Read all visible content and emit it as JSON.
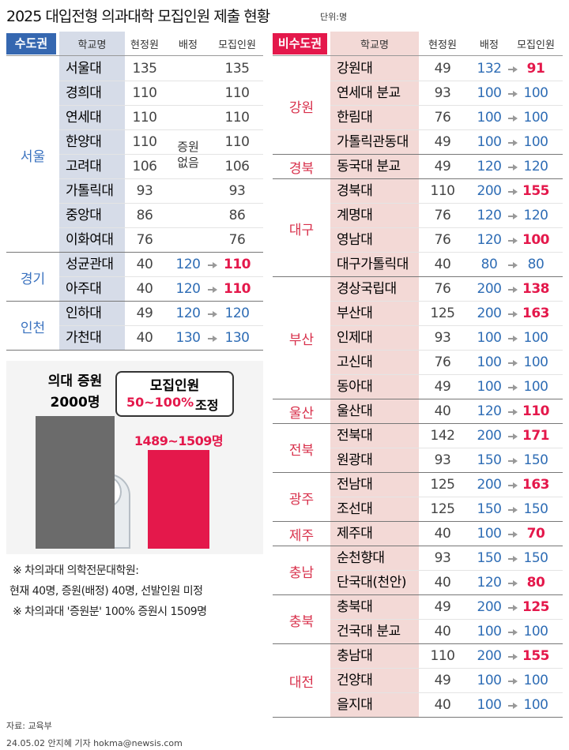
{
  "header": {
    "title": "2025 대입전형 의과대학 모집인원 제출 현황",
    "unit": "단위:명"
  },
  "capital": {
    "label": "수도권",
    "columns": [
      "학교명",
      "현정원",
      "배정",
      "모집인원"
    ],
    "no_increase": "증원 없음",
    "groups": [
      {
        "region": "서울",
        "rows": [
          {
            "school": "서울대",
            "current": 135,
            "recruit": 135
          },
          {
            "school": "경희대",
            "current": 110,
            "recruit": 110
          },
          {
            "school": "연세대",
            "current": 110,
            "recruit": 110
          },
          {
            "school": "한양대",
            "current": 110,
            "recruit": 110
          },
          {
            "school": "고려대",
            "current": 106,
            "recruit": 106
          },
          {
            "school": "가톨릭대",
            "current": 93,
            "recruit": 93
          },
          {
            "school": "중앙대",
            "current": 86,
            "recruit": 86
          },
          {
            "school": "이화여대",
            "current": 76,
            "recruit": 76
          }
        ]
      },
      {
        "region": "경기",
        "rows": [
          {
            "school": "성균관대",
            "current": 40,
            "assigned": 120,
            "recruit": 110
          },
          {
            "school": "아주대",
            "current": 40,
            "assigned": 120,
            "recruit": 110
          }
        ]
      },
      {
        "region": "인천",
        "rows": [
          {
            "school": "인하대",
            "current": 49,
            "assigned": 120,
            "recruit": 120
          },
          {
            "school": "가천대",
            "current": 40,
            "assigned": 130,
            "recruit": 130
          }
        ]
      }
    ]
  },
  "non_capital": {
    "label": "비수도권",
    "columns": [
      "학교명",
      "현정원",
      "배정",
      "모집인원"
    ],
    "groups": [
      {
        "region": "강원",
        "rows": [
          {
            "school": "강원대",
            "current": 49,
            "assigned": 132,
            "recruit": 91
          },
          {
            "school": "연세대 분교",
            "current": 93,
            "assigned": 100,
            "recruit": 100
          },
          {
            "school": "한림대",
            "current": 76,
            "assigned": 100,
            "recruit": 100
          },
          {
            "school": "가톨릭관동대",
            "current": 49,
            "assigned": 100,
            "recruit": 100
          }
        ]
      },
      {
        "region": "경북",
        "rows": [
          {
            "school": "동국대 분교",
            "current": 49,
            "assigned": 120,
            "recruit": 120
          }
        ]
      },
      {
        "region": "대구",
        "rows": [
          {
            "school": "경북대",
            "current": 110,
            "assigned": 200,
            "recruit": 155
          },
          {
            "school": "계명대",
            "current": 76,
            "assigned": 120,
            "recruit": 120
          },
          {
            "school": "영남대",
            "current": 76,
            "assigned": 120,
            "recruit": 100
          },
          {
            "school": "대구가톨릭대",
            "current": 40,
            "assigned": 80,
            "recruit": 80
          }
        ]
      },
      {
        "region": "부산",
        "rows": [
          {
            "school": "경상국립대",
            "current": 76,
            "assigned": 200,
            "recruit": 138
          },
          {
            "school": "부산대",
            "current": 125,
            "assigned": 200,
            "recruit": 163
          },
          {
            "school": "인제대",
            "current": 93,
            "assigned": 100,
            "recruit": 100
          },
          {
            "school": "고신대",
            "current": 76,
            "assigned": 100,
            "recruit": 100
          },
          {
            "school": "동아대",
            "current": 49,
            "assigned": 100,
            "recruit": 100
          }
        ]
      },
      {
        "region": "울산",
        "rows": [
          {
            "school": "울산대",
            "current": 40,
            "assigned": 120,
            "recruit": 110
          }
        ]
      },
      {
        "region": "전북",
        "rows": [
          {
            "school": "전북대",
            "current": 142,
            "assigned": 200,
            "recruit": 171
          },
          {
            "school": "원광대",
            "current": 93,
            "assigned": 150,
            "recruit": 150
          }
        ]
      },
      {
        "region": "광주",
        "rows": [
          {
            "school": "전남대",
            "current": 125,
            "assigned": 200,
            "recruit": 163
          },
          {
            "school": "조선대",
            "current": 125,
            "assigned": 150,
            "recruit": 150
          }
        ]
      },
      {
        "region": "제주",
        "rows": [
          {
            "school": "제주대",
            "current": 40,
            "assigned": 100,
            "recruit": 70
          }
        ]
      },
      {
        "region": "충남",
        "rows": [
          {
            "school": "순천향대",
            "current": 93,
            "assigned": 150,
            "recruit": 150
          },
          {
            "school": "단국대(천안)",
            "current": 40,
            "assigned": 120,
            "recruit": 80
          }
        ]
      },
      {
        "region": "충북",
        "rows": [
          {
            "school": "충북대",
            "current": 49,
            "assigned": 200,
            "recruit": 125
          },
          {
            "school": "건국대 분교",
            "current": 40,
            "assigned": 100,
            "recruit": 100
          }
        ]
      },
      {
        "region": "대전",
        "rows": [
          {
            "school": "충남대",
            "current": 110,
            "assigned": 200,
            "recruit": 155
          },
          {
            "school": "건양대",
            "current": 49,
            "assigned": 100,
            "recruit": 100
          },
          {
            "school": "을지대",
            "current": 40,
            "assigned": 100,
            "recruit": 100
          }
        ]
      }
    ]
  },
  "chart_data": {
    "type": "bar",
    "categories": [
      "의대 증원",
      "모집인원"
    ],
    "values": [
      2000,
      1489
    ],
    "value_labels": [
      "2000명",
      "1489~1509명"
    ],
    "colors": [
      "#6b6b6b",
      "#e4184b"
    ],
    "annotation": [
      "50~100%",
      "조정"
    ]
  },
  "notes": [
    "※ 차의과대 의학전문대학원:",
    "현재 40명, 증원(배정) 40명, 선발인원 미정",
    "※ 차의과대 '증원분' 100% 증원시 1509명"
  ],
  "footer": {
    "source": "자료: 교육부",
    "credit": "24.05.02 안지혜 기자 hokma@newsis.com"
  }
}
